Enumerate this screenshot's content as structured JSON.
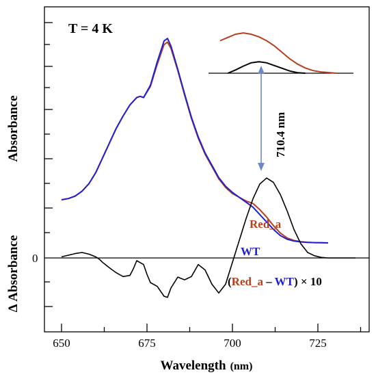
{
  "chart_data": {
    "type": "line",
    "title": "",
    "temperature_label": "T = 4 K",
    "xlabel": "Wavelength",
    "xlabel_unit": "(nm)",
    "ylabel_top": "Absorbance",
    "ylabel_bottom": "Δ Absorbance",
    "zero_label": "0",
    "xlim": [
      645,
      740
    ],
    "xticks": [
      650,
      675,
      700,
      725
    ],
    "xtick_labels": [
      "650",
      "675",
      "700",
      "725"
    ],
    "grid": false,
    "peak_annotation": "710.4 nm",
    "peak_wavelength": 710.4,
    "diff_label": {
      "open": "(",
      "red": "Red_a",
      "dash": " – ",
      "wt": "WT",
      "close": ") × 10"
    },
    "colors": {
      "Red_a": "#b5401e",
      "WT": "#1f1fd6",
      "difference": "#000000",
      "arrow": "#6f86c8"
    },
    "series": [
      {
        "name": "Red_a",
        "color": "#b5401e",
        "x": [
          650,
          652,
          654,
          656,
          658,
          660,
          662,
          664,
          666,
          668,
          670,
          672,
          673,
          674,
          676,
          678,
          680,
          681,
          682,
          684,
          686,
          688,
          690,
          692,
          694,
          696,
          698,
          700,
          702,
          704,
          706,
          708,
          710,
          712,
          714,
          716,
          718,
          720,
          722,
          724,
          726,
          728
        ],
        "y": [
          0.35,
          0.36,
          0.38,
          0.42,
          0.48,
          0.57,
          0.69,
          0.81,
          0.93,
          1.03,
          1.12,
          1.18,
          1.19,
          1.18,
          1.27,
          1.45,
          1.61,
          1.63,
          1.58,
          1.4,
          1.2,
          1.01,
          0.85,
          0.72,
          0.62,
          0.52,
          0.45,
          0.4,
          0.37,
          0.34,
          0.32,
          0.27,
          0.21,
          0.14,
          0.08,
          0.04,
          0.02,
          0.01,
          0.005,
          0.002,
          0.001,
          0.0
        ]
      },
      {
        "name": "WT",
        "color": "#1f1fd6",
        "x": [
          650,
          652,
          654,
          656,
          658,
          660,
          662,
          664,
          666,
          668,
          670,
          672,
          673,
          674,
          676,
          678,
          680,
          681,
          682,
          684,
          686,
          688,
          690,
          692,
          694,
          696,
          698,
          700,
          702,
          704,
          706,
          708,
          710,
          712,
          714,
          716,
          718,
          720,
          722,
          724,
          726,
          728
        ],
        "y": [
          0.35,
          0.36,
          0.38,
          0.42,
          0.48,
          0.57,
          0.69,
          0.81,
          0.93,
          1.03,
          1.12,
          1.18,
          1.19,
          1.18,
          1.28,
          1.47,
          1.64,
          1.66,
          1.6,
          1.41,
          1.21,
          1.02,
          0.86,
          0.73,
          0.63,
          0.53,
          0.46,
          0.41,
          0.37,
          0.33,
          0.29,
          0.23,
          0.17,
          0.11,
          0.06,
          0.03,
          0.015,
          0.008,
          0.004,
          0.002,
          0.001,
          0.0
        ]
      },
      {
        "name": "Red_a – WT × 10",
        "color": "#000000",
        "x": [
          650,
          652,
          654,
          656,
          658,
          660,
          661,
          662,
          664,
          666,
          668,
          670,
          671,
          672,
          674,
          675,
          676,
          678,
          680,
          681,
          682,
          684,
          686,
          688,
          690,
          692,
          694,
          696,
          698,
          700,
          702,
          704,
          706,
          708,
          710,
          712,
          714,
          716,
          718,
          720,
          722,
          724,
          726,
          728,
          732,
          736
        ],
        "y": [
          0.02,
          0.05,
          0.08,
          0.1,
          0.07,
          0.02,
          -0.02,
          -0.08,
          -0.18,
          -0.27,
          -0.34,
          -0.32,
          -0.2,
          -0.05,
          -0.12,
          -0.3,
          -0.45,
          -0.52,
          -0.7,
          -0.72,
          -0.55,
          -0.35,
          -0.4,
          -0.34,
          -0.12,
          -0.22,
          -0.48,
          -0.64,
          -0.48,
          -0.08,
          0.32,
          0.72,
          1.08,
          1.35,
          1.46,
          1.38,
          1.16,
          0.86,
          0.52,
          0.26,
          0.1,
          0.04,
          0.01,
          0.0,
          0.0,
          0.0
        ]
      }
    ],
    "inset_series": [
      {
        "name": "Red_a",
        "color": "#b5401e",
        "x": [
          700,
          702,
          704,
          706,
          708,
          710,
          712,
          714,
          716,
          718,
          720,
          722,
          724,
          726,
          728,
          730
        ],
        "y": [
          0.5,
          0.55,
          0.6,
          0.62,
          0.6,
          0.56,
          0.5,
          0.42,
          0.32,
          0.22,
          0.14,
          0.08,
          0.04,
          0.02,
          0.01,
          0.0
        ]
      },
      {
        "name": "difference",
        "color": "#000000",
        "x": [
          702,
          704,
          706,
          708,
          710,
          712,
          714,
          716,
          718,
          720,
          722
        ],
        "y": [
          0.0,
          0.06,
          0.13,
          0.19,
          0.21,
          0.19,
          0.14,
          0.09,
          0.04,
          0.01,
          0.0
        ]
      }
    ]
  }
}
